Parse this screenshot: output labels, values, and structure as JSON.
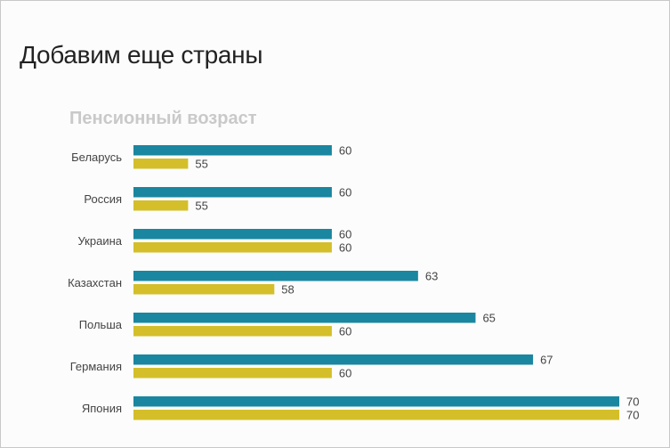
{
  "slide": {
    "title": "Добавим еще страны"
  },
  "chart_data": {
    "type": "bar",
    "orientation": "horizontal",
    "title": "Пенсионный возраст",
    "categories": [
      "Беларусь",
      "Россия",
      "Украина",
      "Казахстан",
      "Польша",
      "Германия",
      "Япония"
    ],
    "series": [
      {
        "name": "series-1",
        "color": "#1a86a0",
        "values": [
          60,
          60,
          60,
          63,
          65,
          67,
          70
        ]
      },
      {
        "name": "series-2",
        "color": "#d4bf2a",
        "values": [
          55,
          55,
          60,
          58,
          60,
          60,
          70
        ]
      }
    ],
    "xlim": [
      53.1,
      70
    ],
    "grid": false,
    "legend": "none",
    "data_labels": true
  }
}
